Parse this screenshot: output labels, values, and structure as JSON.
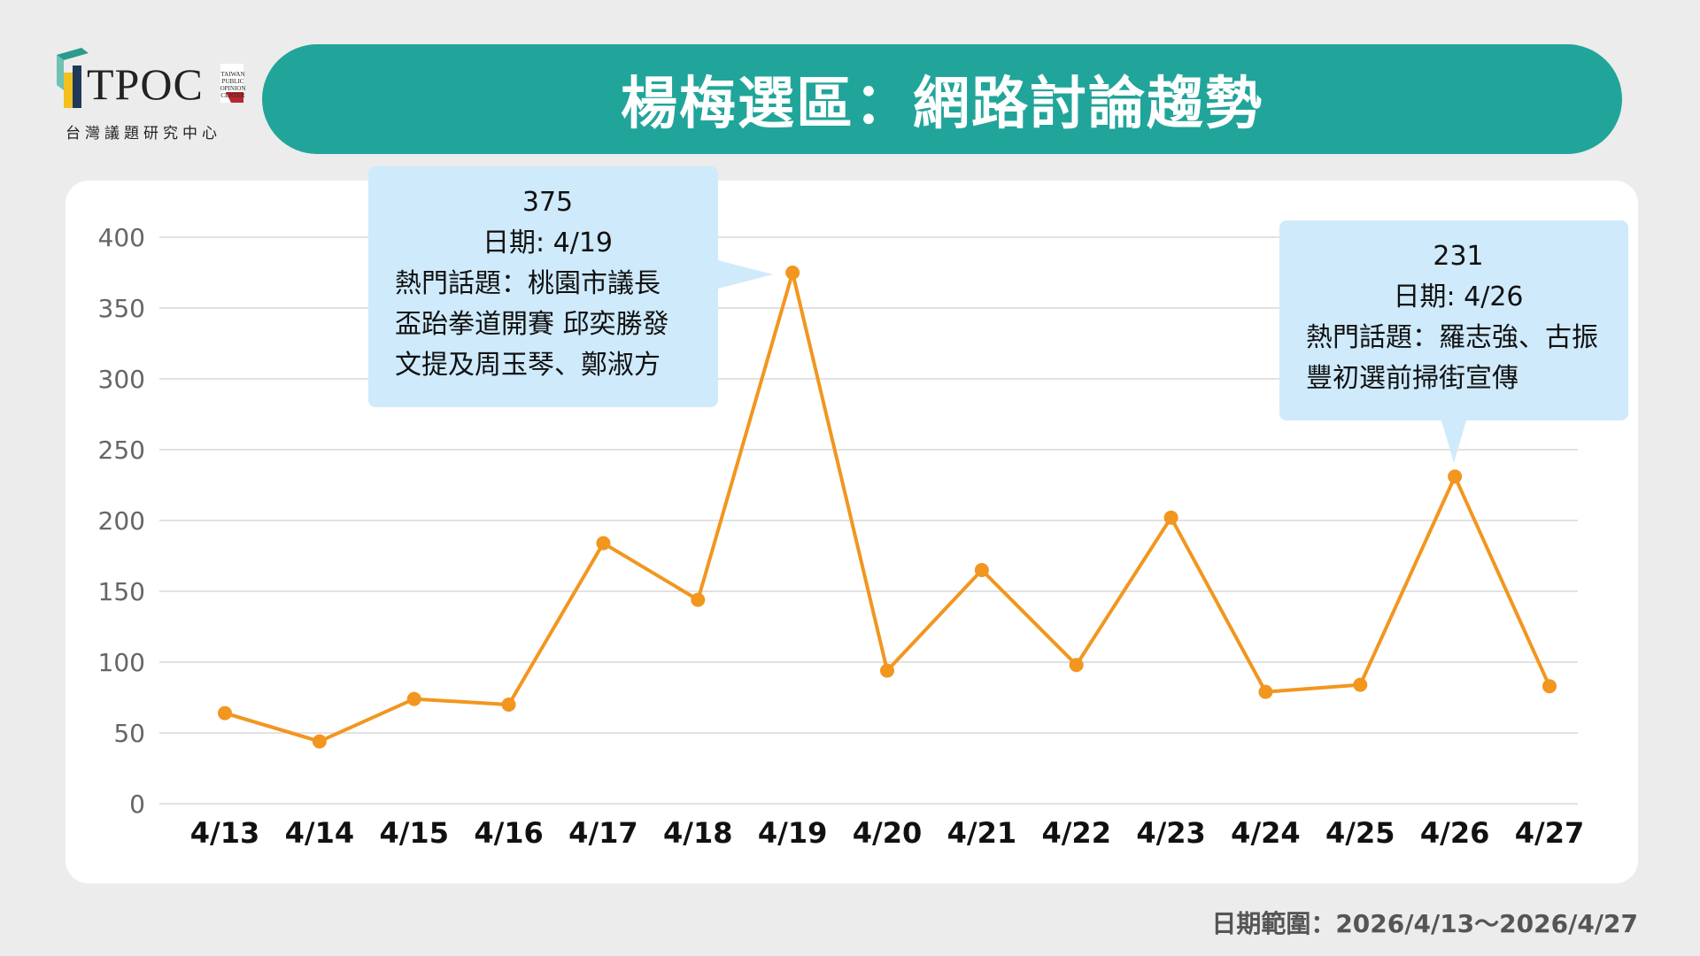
{
  "logo": {
    "text": "TPOC",
    "small_text": [
      "TAIWAN",
      "PUBLIC",
      "OPINION",
      "CENTER"
    ],
    "subtitle": "台灣議題研究中心"
  },
  "title": "楊梅選區：網路討論趨勢",
  "date_range": "日期範圍：2026/4/13〜2026/4/27",
  "colors": {
    "banner": "#21a59a",
    "line": "#f2961f",
    "callout": "#cfeafb",
    "background": "#ececec",
    "logo_green": "#2a9b8d",
    "logo_yellow": "#f3c021",
    "logo_dark": "#1f3a5a",
    "logo_red": "#b7282e"
  },
  "callouts": [
    {
      "value": "375",
      "date": "日期: 4/19",
      "lines": [
        "熱門話題：桃園市議長",
        "盃跆拳道開賽 邱奕勝發",
        "文提及周玉琴、鄭淑方"
      ]
    },
    {
      "value": "231",
      "date": "日期: 4/26",
      "lines": [
        "熱門話題：羅志強、古振",
        "豐初選前掃街宣傳"
      ]
    }
  ],
  "chart_data": {
    "type": "line",
    "categories": [
      "4/13",
      "4/14",
      "4/15",
      "4/16",
      "4/17",
      "4/18",
      "4/19",
      "4/20",
      "4/21",
      "4/22",
      "4/23",
      "4/24",
      "4/25",
      "4/26",
      "4/27"
    ],
    "series": [
      {
        "values": [
          64,
          44,
          74,
          70,
          184,
          144,
          375,
          94,
          165,
          98,
          202,
          79,
          84,
          231,
          83
        ]
      }
    ],
    "yticks": [
      "0",
      "50",
      "100",
      "150",
      "200",
      "250",
      "300",
      "350",
      "400"
    ],
    "ylim": [
      0,
      400
    ],
    "grid": true,
    "title": "",
    "xlabel": "",
    "ylabel": ""
  }
}
